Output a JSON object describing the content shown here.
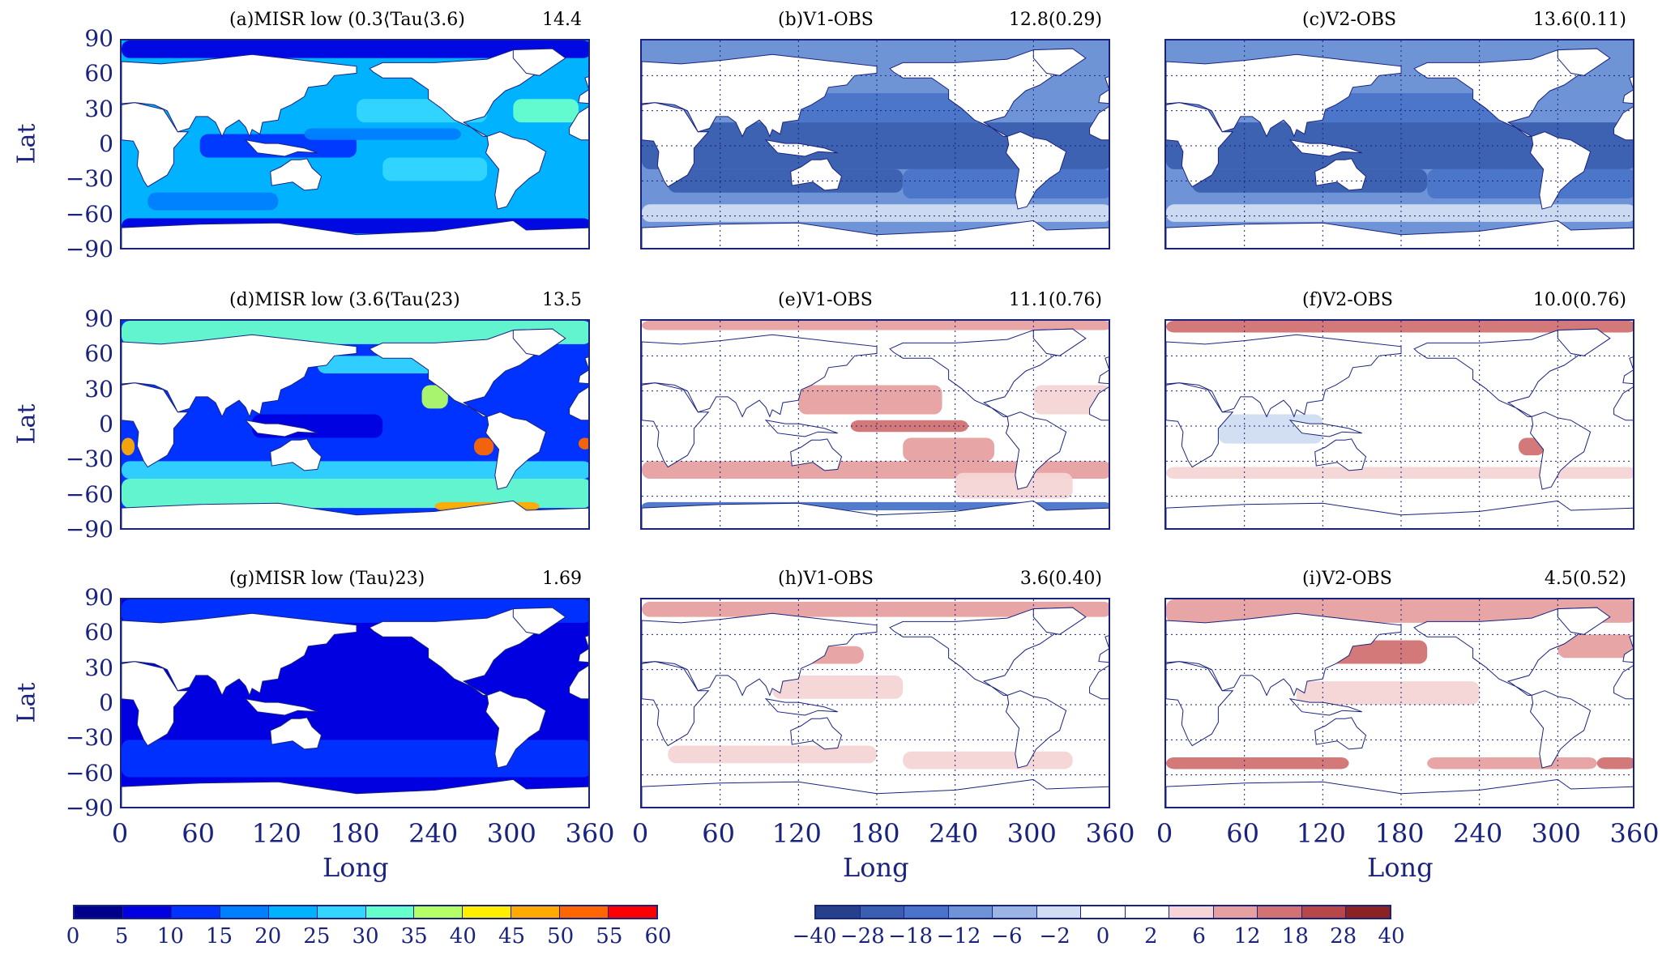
{
  "panels": [
    {
      "id": "a",
      "title": "(a)MISR low (0.3⟨Tau⟨3.6)",
      "stat": "14.4",
      "kind": "obs",
      "pattern": "thin"
    },
    {
      "id": "b",
      "title": "(b)V1-OBS",
      "stat": "12.8(0.29)",
      "kind": "diff",
      "pattern": "neg_strong"
    },
    {
      "id": "c",
      "title": "(c)V2-OBS",
      "stat": "13.6(0.11)",
      "kind": "diff",
      "pattern": "neg_strong"
    },
    {
      "id": "d",
      "title": "(d)MISR low (3.6⟨Tau⟨23)",
      "stat": "13.5",
      "kind": "obs",
      "pattern": "mid"
    },
    {
      "id": "e",
      "title": "(e)V1-OBS",
      "stat": "11.1(0.76)",
      "kind": "diff",
      "pattern": "pos_mixed"
    },
    {
      "id": "f",
      "title": "(f)V2-OBS",
      "stat": "10.0(0.76)",
      "kind": "diff",
      "pattern": "weak_mixed"
    },
    {
      "id": "g",
      "title": "(g)MISR low (Tau⟩23)",
      "stat": "1.69",
      "kind": "obs",
      "pattern": "thick"
    },
    {
      "id": "h",
      "title": "(h)V1-OBS",
      "stat": "3.6(0.40)",
      "kind": "diff",
      "pattern": "weak_pos"
    },
    {
      "id": "i",
      "title": "(i)V2-OBS",
      "stat": "4.5(0.52)",
      "kind": "diff",
      "pattern": "pos_bands"
    }
  ],
  "axes": {
    "lat_title": "Lat",
    "long_title": "Long",
    "lat_ticks": [
      "90",
      "60",
      "30",
      "0",
      "-30",
      "-60",
      "-90"
    ],
    "long_ticks": [
      "0",
      "60",
      "120",
      "180",
      "240",
      "300",
      "360"
    ]
  },
  "colorbar_obs": {
    "labels": [
      "0",
      "5",
      "10",
      "15",
      "20",
      "25",
      "30",
      "35",
      "40",
      "45",
      "50",
      "55",
      "60"
    ],
    "colors": [
      "#00008b",
      "#0000e0",
      "#0033ff",
      "#007fff",
      "#00b2ff",
      "#33d6ff",
      "#66ffcc",
      "#b2ff66",
      "#ffee00",
      "#ffaa00",
      "#ff6600",
      "#ff0000"
    ]
  },
  "colorbar_diff": {
    "labels": [
      "-40",
      "-28",
      "-18",
      "-12",
      "-6",
      "-2",
      "0",
      "2",
      "6",
      "12",
      "18",
      "28",
      "40"
    ],
    "colors": [
      "#27408b",
      "#3a5fb0",
      "#4a74c9",
      "#6e93d6",
      "#9bb4e3",
      "#d0ddf2",
      "#ffffff",
      "#ffffff",
      "#f5d5d5",
      "#e6a0a0",
      "#d27272",
      "#b84848",
      "#8b2323"
    ]
  },
  "chart_data": {
    "type": "heatmap",
    "title": "",
    "xlabel": "Long",
    "ylabel": "Lat",
    "xlim": [
      0,
      360
    ],
    "ylim": [
      -90,
      90
    ],
    "xticks": [
      0,
      60,
      120,
      180,
      240,
      300,
      360
    ],
    "yticks": [
      90,
      60,
      30,
      0,
      -30,
      -60,
      -90
    ],
    "panels": [
      {
        "label": "(a)MISR low (0.3⟨Tau⟨3.6)",
        "value": "14.4"
      },
      {
        "label": "(b)V1-OBS",
        "value": "12.8(0.29)"
      },
      {
        "label": "(c)V2-OBS",
        "value": "13.6(0.11)"
      },
      {
        "label": "(d)MISR low (3.6⟨Tau⟨23)",
        "value": "13.5"
      },
      {
        "label": "(e)V1-OBS",
        "value": "11.1(0.76)"
      },
      {
        "label": "(f)V2-OBS",
        "value": "10.0(0.76)"
      },
      {
        "label": "(g)MISR low (Tau⟩23)",
        "value": "1.69"
      },
      {
        "label": "(h)V1-OBS",
        "value": "3.6(0.40)"
      },
      {
        "label": "(i)V2-OBS",
        "value": "4.5(0.52)"
      }
    ],
    "colorbar_obs_levels": [
      0,
      5,
      10,
      15,
      20,
      25,
      30,
      35,
      40,
      45,
      50,
      55,
      60
    ],
    "colorbar_diff_levels": [
      -40,
      -28,
      -18,
      -12,
      -6,
      -2,
      0,
      2,
      6,
      12,
      18,
      28,
      40
    ]
  }
}
